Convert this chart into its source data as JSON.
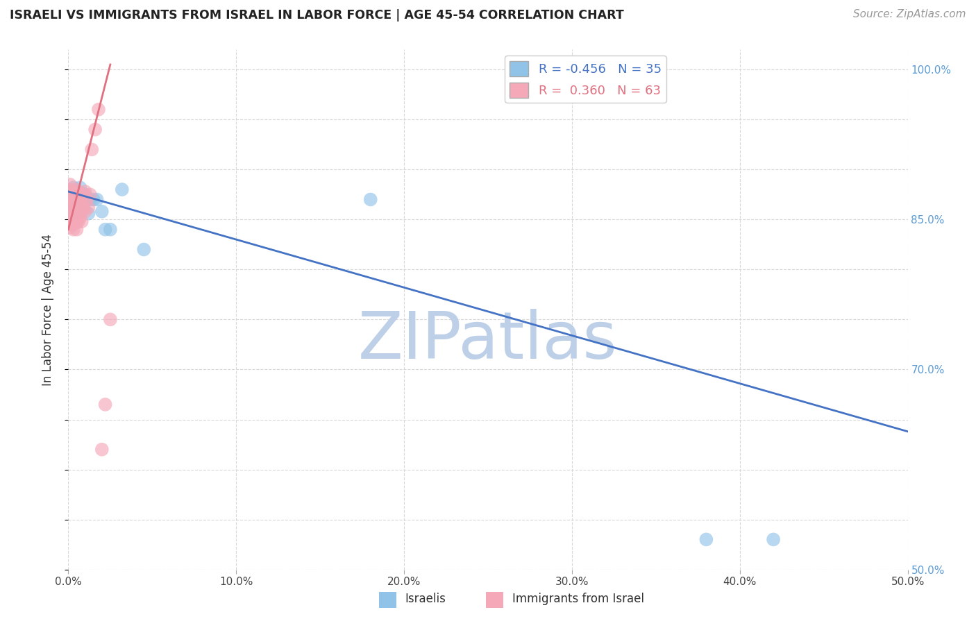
{
  "title": "ISRAELI VS IMMIGRANTS FROM ISRAEL IN LABOR FORCE | AGE 45-54 CORRELATION CHART",
  "source": "Source: ZipAtlas.com",
  "ylabel": "In Labor Force | Age 45-54",
  "xlim": [
    0.0,
    0.5
  ],
  "ylim": [
    0.5,
    1.02
  ],
  "xticks": [
    0.0,
    0.1,
    0.2,
    0.3,
    0.4,
    0.5
  ],
  "xtick_labels": [
    "0.0%",
    "10.0%",
    "20.0%",
    "30.0%",
    "40.0%",
    "50.0%"
  ],
  "ytick_vals": [
    0.5,
    0.55,
    0.6,
    0.65,
    0.7,
    0.75,
    0.8,
    0.85,
    0.9,
    0.95,
    1.0
  ],
  "ytick_labels_left": [
    "",
    "",
    "",
    "",
    "",
    "",
    "",
    "",
    "",
    "",
    ""
  ],
  "ytick_labels_right": [
    "50.0%",
    "",
    "",
    "",
    "70.0%",
    "",
    "",
    "85.0%",
    "",
    "",
    "100.0%"
  ],
  "legend_r1": "R = -0.456",
  "legend_n1": "N = 35",
  "legend_r2": "R =  0.360",
  "legend_n2": "N = 63",
  "color_blue": "#91C3E8",
  "color_pink": "#F4A8B8",
  "color_blue_line": "#4472C4",
  "color_pink_line": "#E07080",
  "watermark": "ZIPatlas",
  "watermark_color": "#BDD0E8",
  "background_color": "#FFFFFF",
  "grid_color": "#D8D8D8",
  "israelis_x": [
    0.001,
    0.001,
    0.001,
    0.002,
    0.002,
    0.002,
    0.002,
    0.003,
    0.003,
    0.003,
    0.004,
    0.004,
    0.004,
    0.005,
    0.005,
    0.006,
    0.006,
    0.007,
    0.007,
    0.008,
    0.009,
    0.01,
    0.011,
    0.012,
    0.013,
    0.015,
    0.017,
    0.02,
    0.022,
    0.025,
    0.032,
    0.045,
    0.18,
    0.38,
    0.42
  ],
  "israelis_y": [
    0.87,
    0.858,
    0.862,
    0.872,
    0.865,
    0.856,
    0.878,
    0.875,
    0.882,
    0.86,
    0.878,
    0.866,
    0.87,
    0.872,
    0.858,
    0.876,
    0.862,
    0.87,
    0.882,
    0.876,
    0.862,
    0.875,
    0.87,
    0.856,
    0.87,
    0.87,
    0.87,
    0.858,
    0.84,
    0.84,
    0.88,
    0.82,
    0.87,
    0.53,
    0.53
  ],
  "immigrants_x": [
    0.001,
    0.001,
    0.001,
    0.001,
    0.001,
    0.001,
    0.001,
    0.001,
    0.001,
    0.001,
    0.001,
    0.002,
    0.002,
    0.002,
    0.002,
    0.002,
    0.002,
    0.002,
    0.002,
    0.003,
    0.003,
    0.003,
    0.003,
    0.003,
    0.003,
    0.003,
    0.003,
    0.004,
    0.004,
    0.004,
    0.004,
    0.004,
    0.004,
    0.005,
    0.005,
    0.005,
    0.005,
    0.005,
    0.005,
    0.006,
    0.006,
    0.006,
    0.006,
    0.007,
    0.007,
    0.007,
    0.007,
    0.008,
    0.008,
    0.008,
    0.009,
    0.009,
    0.01,
    0.01,
    0.011,
    0.012,
    0.013,
    0.014,
    0.016,
    0.018,
    0.02,
    0.022,
    0.025
  ],
  "immigrants_y": [
    0.88,
    0.872,
    0.865,
    0.858,
    0.848,
    0.842,
    0.87,
    0.862,
    0.855,
    0.878,
    0.885,
    0.862,
    0.875,
    0.852,
    0.868,
    0.845,
    0.858,
    0.878,
    0.87,
    0.862,
    0.875,
    0.858,
    0.845,
    0.87,
    0.852,
    0.865,
    0.84,
    0.87,
    0.88,
    0.862,
    0.875,
    0.852,
    0.858,
    0.875,
    0.862,
    0.848,
    0.87,
    0.858,
    0.84,
    0.878,
    0.865,
    0.855,
    0.848,
    0.87,
    0.862,
    0.875,
    0.852,
    0.865,
    0.858,
    0.848,
    0.875,
    0.862,
    0.858,
    0.878,
    0.87,
    0.862,
    0.875,
    0.92,
    0.94,
    0.96,
    0.62,
    0.665,
    0.75
  ],
  "blue_line_x0": 0.0,
  "blue_line_x1": 0.5,
  "blue_line_y0": 0.878,
  "blue_line_y1": 0.638,
  "pink_line_x0": 0.0,
  "pink_line_x1": 0.025,
  "pink_line_y0": 0.84,
  "pink_line_y1": 1.005
}
